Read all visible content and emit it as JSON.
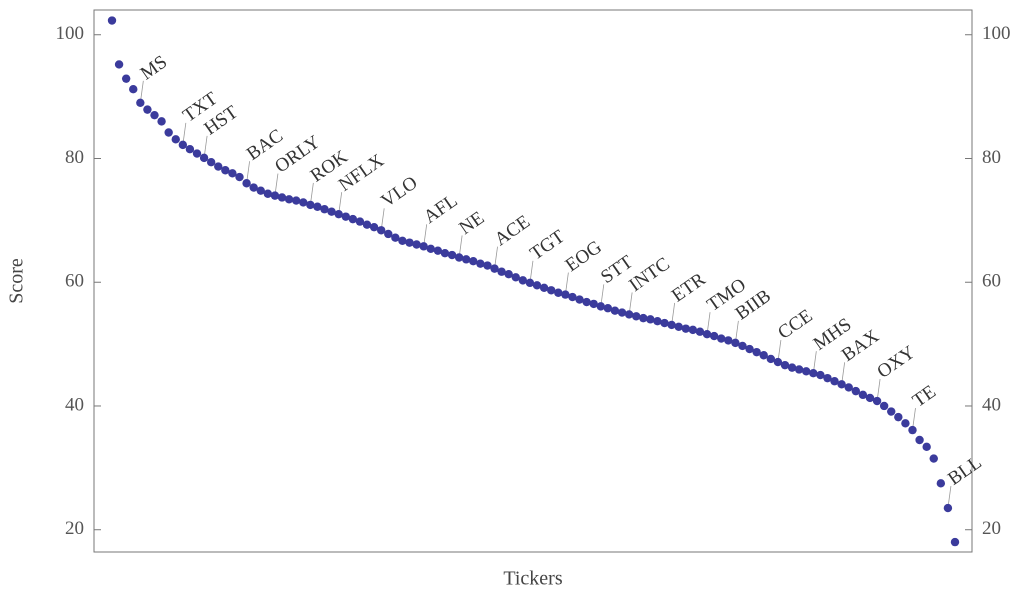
{
  "chart_data": {
    "type": "scatter",
    "x_label": "Tickers",
    "y_label": "Score",
    "color": "#3b3b9c",
    "ylim": [
      16.4,
      104.0
    ],
    "yticks": [
      20,
      40,
      60,
      80,
      100
    ],
    "categories": [
      null,
      null,
      null,
      null,
      "MS",
      null,
      null,
      null,
      null,
      null,
      "TXT",
      null,
      null,
      "HST",
      null,
      null,
      null,
      null,
      null,
      "BAC",
      null,
      null,
      null,
      "ORLY",
      null,
      null,
      null,
      null,
      "ROK",
      null,
      null,
      null,
      "NFLX",
      null,
      null,
      null,
      null,
      null,
      "VLO",
      null,
      null,
      null,
      null,
      null,
      "AFL",
      null,
      null,
      null,
      null,
      "NE",
      null,
      null,
      null,
      null,
      "ACE",
      null,
      null,
      null,
      null,
      "TGT",
      null,
      null,
      null,
      null,
      "EOG",
      null,
      null,
      null,
      null,
      "STT",
      null,
      null,
      null,
      "INTC",
      null,
      null,
      null,
      null,
      null,
      "ETR",
      null,
      null,
      null,
      null,
      "TMO",
      null,
      null,
      null,
      "BIIB",
      null,
      null,
      null,
      null,
      null,
      "CCE",
      null,
      null,
      null,
      null,
      "MHS",
      null,
      null,
      null,
      "BAX",
      null,
      null,
      null,
      null,
      "OXY",
      null,
      null,
      null,
      null,
      "TE",
      null,
      null,
      null,
      null,
      "BLL",
      null
    ],
    "values": [
      102.3,
      95.2,
      92.9,
      91.2,
      89.0,
      87.9,
      87.0,
      86.0,
      84.2,
      83.1,
      82.2,
      81.5,
      80.8,
      80.1,
      79.4,
      78.7,
      78.1,
      77.6,
      77.0,
      76.0,
      75.3,
      74.8,
      74.3,
      74.0,
      73.7,
      73.4,
      73.2,
      72.9,
      72.5,
      72.2,
      71.8,
      71.4,
      71.0,
      70.6,
      70.2,
      69.8,
      69.3,
      68.9,
      68.4,
      67.8,
      67.2,
      66.7,
      66.4,
      66.1,
      65.8,
      65.4,
      65.1,
      64.7,
      64.4,
      64.0,
      63.7,
      63.4,
      63.0,
      62.7,
      62.2,
      61.7,
      61.3,
      60.8,
      60.3,
      59.9,
      59.5,
      59.1,
      58.7,
      58.3,
      58.0,
      57.6,
      57.2,
      56.8,
      56.5,
      56.1,
      55.8,
      55.4,
      55.1,
      54.8,
      54.5,
      54.2,
      54.0,
      53.7,
      53.4,
      53.1,
      52.8,
      52.5,
      52.3,
      52.0,
      51.6,
      51.3,
      50.9,
      50.6,
      50.2,
      49.7,
      49.2,
      48.7,
      48.2,
      47.6,
      47.1,
      46.6,
      46.2,
      45.9,
      45.6,
      45.3,
      45.0,
      44.5,
      44.0,
      43.5,
      43.0,
      42.4,
      41.8,
      41.3,
      40.8,
      40.0,
      39.1,
      38.2,
      37.2,
      36.1,
      34.5,
      33.4,
      31.5,
      27.5,
      23.5,
      18.0
    ]
  }
}
